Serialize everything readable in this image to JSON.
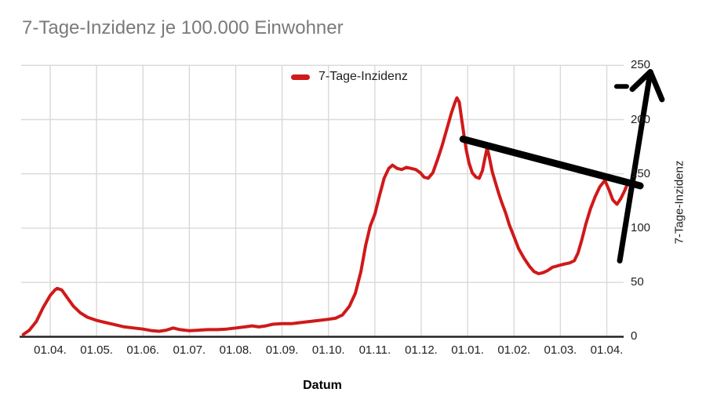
{
  "title": "7-Tage-Inzidenz je 100.000 Einwohner",
  "legend": {
    "label": "7-Tage-Inzidenz"
  },
  "x_axis": {
    "title": "Datum",
    "tick_labels": [
      "01.04.",
      "01.05.",
      "01.06.",
      "01.07.",
      "01.08.",
      "01.09.",
      "01.10.",
      "01.11.",
      "01.12.",
      "01.01.",
      "01.02.",
      "01.03.",
      "01.04."
    ]
  },
  "y_axis": {
    "title": "7-Tage-Inzidenz",
    "tick_values": [
      0,
      50,
      100,
      150,
      200,
      250
    ],
    "min": 0,
    "max": 250
  },
  "colors": {
    "series": "#d01919",
    "grid": "#d9d9d9",
    "axis": "#222222",
    "title": "#7a7a7a",
    "tick_label": "#1f1f1f",
    "annotation": "#000000"
  },
  "chart_data": {
    "type": "line",
    "title": "7-Tage-Inzidenz je 100.000 Einwohner",
    "xlabel": "Datum",
    "ylabel": "7-Tage-Inzidenz",
    "ylim": [
      0,
      250
    ],
    "grid": true,
    "legend_position": "top-center",
    "x_unit": "months offset from first tick (01.04.)",
    "x_tick_labels": [
      "01.04.",
      "01.05.",
      "01.06.",
      "01.07.",
      "01.08.",
      "01.09.",
      "01.10.",
      "01.11.",
      "01.12.",
      "01.01.",
      "01.02.",
      "01.03.",
      "01.04."
    ],
    "series": [
      {
        "name": "7-Tage-Inzidenz",
        "color": "#d01919",
        "points": [
          [
            -0.58,
            2
          ],
          [
            -0.45,
            6
          ],
          [
            -0.3,
            14
          ],
          [
            -0.15,
            27
          ],
          [
            0,
            38
          ],
          [
            0.1,
            43
          ],
          [
            0.15,
            44.5
          ],
          [
            0.25,
            43
          ],
          [
            0.35,
            37
          ],
          [
            0.5,
            28
          ],
          [
            0.65,
            22
          ],
          [
            0.8,
            18
          ],
          [
            1.0,
            15
          ],
          [
            1.2,
            13
          ],
          [
            1.4,
            11
          ],
          [
            1.6,
            9
          ],
          [
            1.8,
            8
          ],
          [
            2.0,
            7
          ],
          [
            2.2,
            5.5
          ],
          [
            2.35,
            5
          ],
          [
            2.5,
            6
          ],
          [
            2.65,
            8
          ],
          [
            2.8,
            6.5
          ],
          [
            3.0,
            5.5
          ],
          [
            3.2,
            6
          ],
          [
            3.4,
            6.5
          ],
          [
            3.6,
            6.5
          ],
          [
            3.8,
            7
          ],
          [
            4.0,
            8
          ],
          [
            4.2,
            9
          ],
          [
            4.35,
            10
          ],
          [
            4.5,
            9
          ],
          [
            4.65,
            10
          ],
          [
            4.8,
            11.5
          ],
          [
            5.0,
            12
          ],
          [
            5.2,
            12
          ],
          [
            5.4,
            13
          ],
          [
            5.6,
            14
          ],
          [
            5.8,
            15
          ],
          [
            6.0,
            16
          ],
          [
            6.15,
            17
          ],
          [
            6.3,
            20
          ],
          [
            6.45,
            28
          ],
          [
            6.58,
            40
          ],
          [
            6.7,
            60
          ],
          [
            6.8,
            84
          ],
          [
            6.9,
            102
          ],
          [
            7.0,
            113
          ],
          [
            7.1,
            130
          ],
          [
            7.2,
            146
          ],
          [
            7.3,
            155
          ],
          [
            7.38,
            158
          ],
          [
            7.48,
            155
          ],
          [
            7.58,
            154
          ],
          [
            7.68,
            156
          ],
          [
            7.78,
            155
          ],
          [
            7.88,
            154
          ],
          [
            7.98,
            151
          ],
          [
            8.06,
            147
          ],
          [
            8.15,
            146
          ],
          [
            8.25,
            151
          ],
          [
            8.35,
            163
          ],
          [
            8.45,
            176
          ],
          [
            8.55,
            191
          ],
          [
            8.65,
            206
          ],
          [
            8.72,
            215
          ],
          [
            8.77,
            220
          ],
          [
            8.82,
            216
          ],
          [
            8.87,
            201
          ],
          [
            8.92,
            186
          ],
          [
            8.97,
            172
          ],
          [
            9.03,
            160
          ],
          [
            9.1,
            151
          ],
          [
            9.18,
            147
          ],
          [
            9.25,
            146
          ],
          [
            9.32,
            153
          ],
          [
            9.38,
            166
          ],
          [
            9.42,
            174
          ],
          [
            9.47,
            165
          ],
          [
            9.53,
            152
          ],
          [
            9.6,
            142
          ],
          [
            9.67,
            132
          ],
          [
            9.74,
            123
          ],
          [
            9.82,
            114
          ],
          [
            9.9,
            103
          ],
          [
            10.0,
            92
          ],
          [
            10.1,
            81
          ],
          [
            10.22,
            72
          ],
          [
            10.33,
            65
          ],
          [
            10.43,
            60
          ],
          [
            10.53,
            58
          ],
          [
            10.63,
            59
          ],
          [
            10.73,
            61
          ],
          [
            10.83,
            64
          ],
          [
            10.92,
            65
          ],
          [
            11.0,
            66
          ],
          [
            11.1,
            67
          ],
          [
            11.2,
            68
          ],
          [
            11.3,
            70
          ],
          [
            11.38,
            77
          ],
          [
            11.46,
            89
          ],
          [
            11.55,
            104
          ],
          [
            11.65,
            118
          ],
          [
            11.75,
            129
          ],
          [
            11.85,
            138
          ],
          [
            11.96,
            144
          ],
          [
            12.05,
            135
          ],
          [
            12.13,
            126
          ],
          [
            12.22,
            122
          ],
          [
            12.3,
            127
          ],
          [
            12.38,
            134
          ],
          [
            12.42,
            138
          ]
        ]
      }
    ],
    "annotations": [
      {
        "type": "line",
        "name": "downtrend-line",
        "from": [
          8.9,
          182
        ],
        "to": [
          12.72,
          139
        ],
        "width": 9
      },
      {
        "type": "arrow",
        "name": "up-arrow",
        "from": [
          12.28,
          70
        ],
        "to": [
          12.94,
          244
        ],
        "head": [
          [
            12.55,
            228
          ],
          [
            13.19,
            218.5
          ]
        ],
        "width": 7
      },
      {
        "type": "dash",
        "name": "minus-dash",
        "from": [
          12.21,
          230.5
        ],
        "to": [
          12.43,
          230.5
        ],
        "width": 6
      }
    ]
  }
}
